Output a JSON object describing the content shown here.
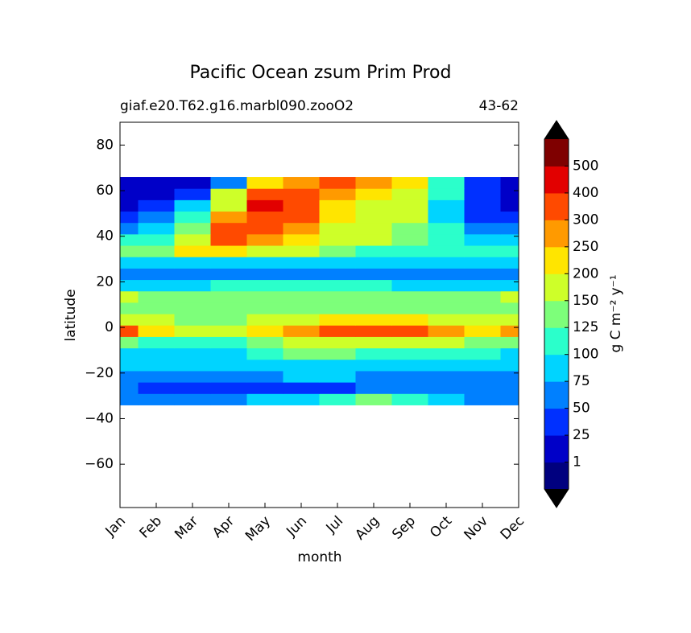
{
  "chart_data": {
    "type": "contourf",
    "title": "Pacific Ocean zsum Prim Prod",
    "subtitle_left": "giaf.e20.T62.g16.marbl090.zooO2",
    "subtitle_right": "43-62",
    "x_label": "month",
    "y_label": "latitude",
    "categories": [
      "Jan",
      "Feb",
      "Mar",
      "Apr",
      "May",
      "Jun",
      "Jul",
      "Aug",
      "Sep",
      "Oct",
      "Nov",
      "Dec"
    ],
    "ylim": [
      -79,
      90
    ],
    "yticks": [
      {
        "value": -60,
        "label": "−60"
      },
      {
        "value": -40,
        "label": "−40"
      },
      {
        "value": -20,
        "label": "−20"
      },
      0,
      20,
      40,
      60,
      80
    ],
    "y": [
      -31.5,
      -26.5,
      -21.5,
      -16.5,
      -11.5,
      -6.5,
      -1.5,
      3.5,
      8.5,
      13.5,
      18.5,
      23.5,
      28.5,
      33.5,
      38.5,
      43.5,
      48.5,
      53.5,
      58.5,
      63.5
    ],
    "z": [
      [
        60,
        60,
        65,
        70,
        80,
        90,
        110,
        130,
        120,
        90,
        70,
        60
      ],
      [
        50,
        45,
        40,
        35,
        30,
        35,
        45,
        55,
        60,
        60,
        60,
        55
      ],
      [
        60,
        60,
        60,
        60,
        65,
        75,
        75,
        70,
        65,
        60,
        60,
        60
      ],
      [
        80,
        80,
        80,
        80,
        85,
        90,
        90,
        85,
        80,
        80,
        80,
        80
      ],
      [
        90,
        90,
        90,
        95,
        110,
        130,
        130,
        120,
        110,
        110,
        100,
        95
      ],
      [
        130,
        120,
        120,
        120,
        140,
        160,
        180,
        170,
        160,
        150,
        140,
        130
      ],
      [
        300,
        210,
        190,
        190,
        210,
        260,
        320,
        330,
        310,
        260,
        240,
        260
      ],
      [
        170,
        150,
        140,
        140,
        150,
        170,
        200,
        210,
        200,
        180,
        170,
        170
      ],
      [
        140,
        135,
        130,
        130,
        130,
        135,
        140,
        140,
        140,
        140,
        140,
        140
      ],
      [
        160,
        140,
        140,
        130,
        130,
        130,
        130,
        130,
        130,
        130,
        135,
        150
      ],
      [
        90,
        90,
        95,
        100,
        100,
        100,
        100,
        100,
        95,
        90,
        85,
        90
      ],
      [
        60,
        60,
        60,
        65,
        65,
        65,
        65,
        65,
        60,
        60,
        55,
        60
      ],
      [
        80,
        85,
        90,
        90,
        90,
        85,
        80,
        80,
        80,
        80,
        85,
        80
      ],
      [
        130,
        140,
        200,
        210,
        190,
        160,
        140,
        120,
        110,
        100,
        100,
        110
      ],
      [
        100,
        120,
        180,
        300,
        270,
        210,
        180,
        150,
        130,
        110,
        90,
        80
      ],
      [
        60,
        90,
        140,
        300,
        310,
        250,
        190,
        160,
        140,
        100,
        60,
        50
      ],
      [
        35,
        60,
        110,
        250,
        350,
        300,
        210,
        170,
        150,
        80,
        45,
        30
      ],
      [
        20,
        40,
        80,
        180,
        420,
        330,
        240,
        180,
        160,
        90,
        35,
        20
      ],
      [
        15,
        20,
        45,
        150,
        350,
        300,
        280,
        220,
        170,
        100,
        30,
        15
      ],
      [
        10,
        10,
        20,
        60,
        220,
        260,
        300,
        250,
        200,
        120,
        40,
        15
      ]
    ],
    "levels": [
      1,
      25,
      50,
      75,
      100,
      125,
      150,
      200,
      250,
      300,
      400,
      500
    ],
    "colors": [
      "#00007f",
      "#0000c8",
      "#0030ff",
      "#0080ff",
      "#00d4ff",
      "#2bffcb",
      "#7dff7a",
      "#ceff29",
      "#ffe500",
      "#ff9a00",
      "#ff4a00",
      "#e20000",
      "#7f0000"
    ],
    "extend_color": "#000000",
    "colorbar_label": "g C m⁻² y⁻¹"
  }
}
